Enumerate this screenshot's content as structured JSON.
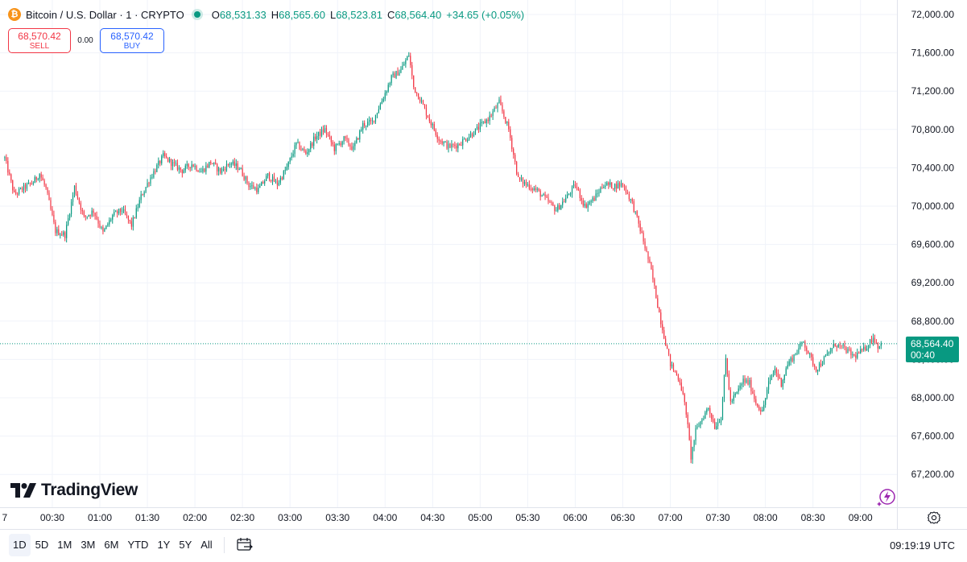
{
  "header": {
    "coin_symbol": "₿",
    "title": "Bitcoin / U.S. Dollar · 1 · CRYPTO",
    "ohlc": {
      "o_label": "O",
      "o_value": "68,531.33",
      "h_label": "H",
      "h_value": "68,565.60",
      "l_label": "L",
      "l_value": "68,523.81",
      "c_label": "C",
      "c_value": "68,564.40",
      "change": "+34.65 (+0.05%)"
    }
  },
  "trade": {
    "sell_price": "68,570.42",
    "sell_label": "SELL",
    "spread": "0.00",
    "buy_price": "68,570.42",
    "buy_label": "BUY"
  },
  "logo_text": "TradingView",
  "price_tag": {
    "price": "68,564.40",
    "countdown": "00:40"
  },
  "footer": {
    "ranges": [
      "1D",
      "5D",
      "1M",
      "3M",
      "6M",
      "YTD",
      "1Y",
      "5Y",
      "All"
    ],
    "active_range": "1D",
    "time": "09:19:19 UTC"
  },
  "colors": {
    "up": "#089981",
    "down": "#f23645",
    "grid": "#f0f3fa",
    "accent": "#2962ff"
  },
  "icons": [
    "bitcoin-icon",
    "live-dot-icon",
    "tradingview-logo-icon",
    "calendar-icon",
    "settings-icon",
    "lightning-icon"
  ],
  "chart_data": {
    "type": "candlestick",
    "timeframe": "1",
    "x_tick_labels": [
      "7",
      "00:30",
      "01:00",
      "01:30",
      "02:00",
      "02:30",
      "03:00",
      "03:30",
      "04:00",
      "04:30",
      "05:00",
      "05:30",
      "06:00",
      "06:30",
      "07:00",
      "07:30",
      "08:00",
      "08:30",
      "09:00"
    ],
    "y_tick_labels": [
      "72,000.00",
      "71,600.00",
      "71,200.00",
      "70,800.00",
      "70,400.00",
      "70,000.00",
      "69,600.00",
      "69,200.00",
      "68,800.00",
      "68,400.00",
      "68,000.00",
      "67,600.00",
      "67,200.00"
    ],
    "y_ticks": [
      72000,
      71600,
      71200,
      70800,
      70400,
      70000,
      69600,
      69200,
      68800,
      68400,
      68000,
      67600,
      67200
    ],
    "ylim": [
      67000,
      72100
    ],
    "x_range_minutes": [
      -3,
      563
    ],
    "last_price": 68564.4,
    "series": [
      {
        "price_path": [
          [
            0,
            70500
          ],
          [
            6,
            70120
          ],
          [
            12,
            70190
          ],
          [
            18,
            70250
          ],
          [
            22,
            70340
          ],
          [
            26,
            70180
          ],
          [
            32,
            69740
          ],
          [
            38,
            69700
          ],
          [
            44,
            70200
          ],
          [
            50,
            69880
          ],
          [
            56,
            69950
          ],
          [
            62,
            69720
          ],
          [
            68,
            69900
          ],
          [
            74,
            69960
          ],
          [
            80,
            69800
          ],
          [
            86,
            70100
          ],
          [
            92,
            70300
          ],
          [
            100,
            70520
          ],
          [
            106,
            70440
          ],
          [
            112,
            70370
          ],
          [
            118,
            70440
          ],
          [
            124,
            70360
          ],
          [
            130,
            70460
          ],
          [
            136,
            70360
          ],
          [
            142,
            70450
          ],
          [
            148,
            70400
          ],
          [
            154,
            70220
          ],
          [
            160,
            70170
          ],
          [
            166,
            70320
          ],
          [
            172,
            70230
          ],
          [
            178,
            70400
          ],
          [
            184,
            70650
          ],
          [
            190,
            70550
          ],
          [
            196,
            70720
          ],
          [
            202,
            70800
          ],
          [
            208,
            70600
          ],
          [
            214,
            70700
          ],
          [
            220,
            70600
          ],
          [
            226,
            70850
          ],
          [
            232,
            70880
          ],
          [
            238,
            71100
          ],
          [
            244,
            71340
          ],
          [
            250,
            71420
          ],
          [
            255,
            71580
          ],
          [
            258,
            71240
          ],
          [
            262,
            71120
          ],
          [
            268,
            70900
          ],
          [
            274,
            70700
          ],
          [
            280,
            70620
          ],
          [
            286,
            70640
          ],
          [
            292,
            70720
          ],
          [
            298,
            70800
          ],
          [
            306,
            70930
          ],
          [
            312,
            71080
          ],
          [
            318,
            70800
          ],
          [
            324,
            70280
          ],
          [
            330,
            70220
          ],
          [
            336,
            70160
          ],
          [
            342,
            70060
          ],
          [
            348,
            69960
          ],
          [
            354,
            70080
          ],
          [
            360,
            70220
          ],
          [
            366,
            70000
          ],
          [
            372,
            70080
          ],
          [
            378,
            70230
          ],
          [
            384,
            70210
          ],
          [
            390,
            70230
          ],
          [
            396,
            70030
          ],
          [
            402,
            69700
          ],
          [
            408,
            69320
          ],
          [
            414,
            68800
          ],
          [
            420,
            68350
          ],
          [
            426,
            68180
          ],
          [
            430,
            67850
          ],
          [
            433,
            67380
          ],
          [
            436,
            67650
          ],
          [
            440,
            67780
          ],
          [
            444,
            67900
          ],
          [
            448,
            67700
          ],
          [
            452,
            67800
          ],
          [
            455,
            68400
          ],
          [
            458,
            67950
          ],
          [
            462,
            68050
          ],
          [
            466,
            68180
          ],
          [
            470,
            68150
          ],
          [
            474,
            67950
          ],
          [
            478,
            67850
          ],
          [
            482,
            68150
          ],
          [
            486,
            68300
          ],
          [
            490,
            68150
          ],
          [
            494,
            68350
          ],
          [
            498,
            68440
          ],
          [
            504,
            68590
          ],
          [
            508,
            68430
          ],
          [
            512,
            68300
          ],
          [
            518,
            68420
          ],
          [
            524,
            68560
          ],
          [
            530,
            68510
          ],
          [
            536,
            68430
          ],
          [
            542,
            68500
          ],
          [
            548,
            68630
          ],
          [
            551,
            68540
          ],
          [
            553,
            68564.4
          ]
        ]
      }
    ]
  }
}
